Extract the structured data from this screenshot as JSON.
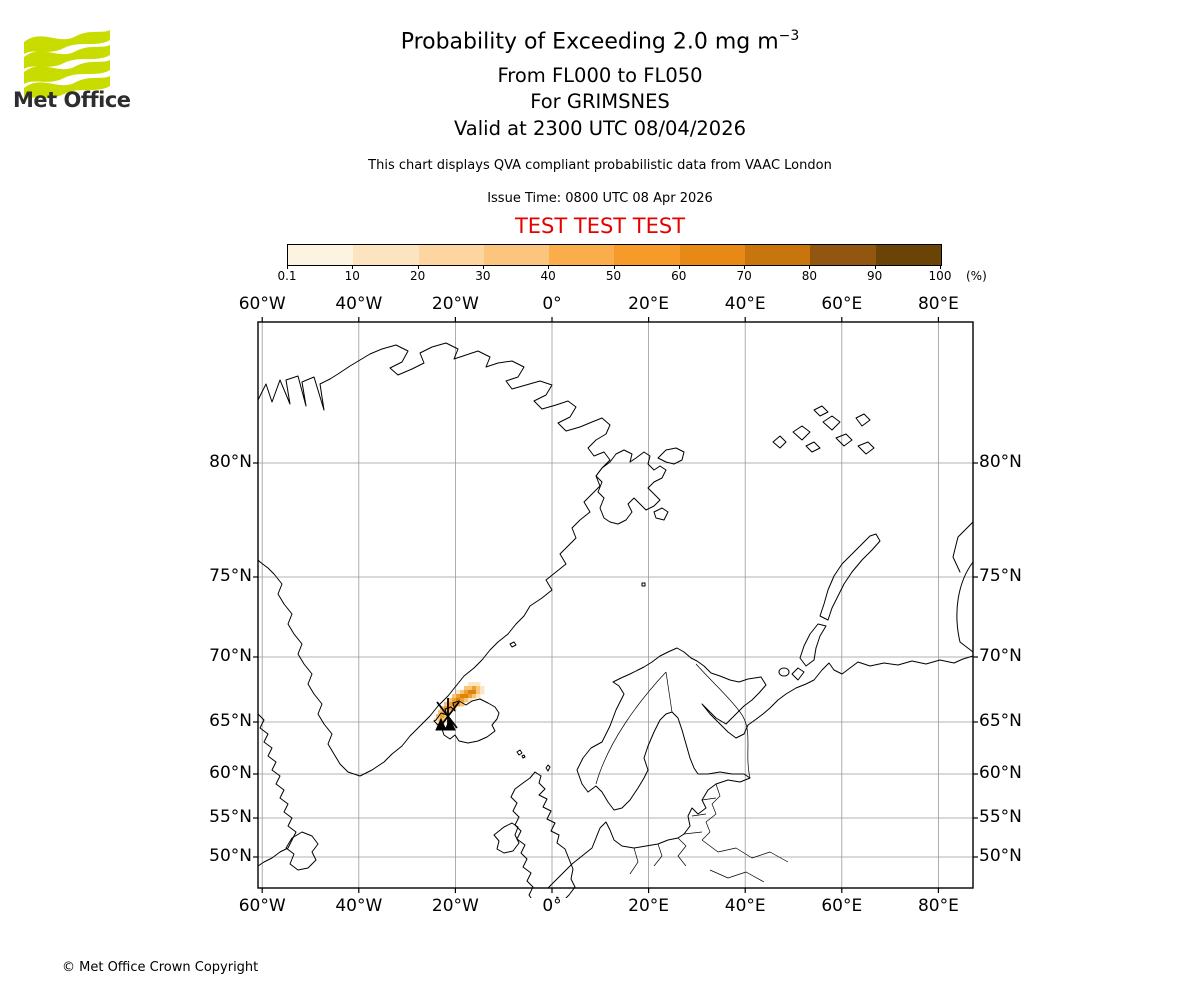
{
  "header": {
    "logo_text": "Met Office",
    "logo_green": "#c8dc00",
    "title": "Probability of Exceeding 2.0 mg m",
    "title_sup": "−3",
    "subtitle1": "From FL000 to FL050",
    "subtitle2": "For GRIMSNES",
    "subtitle3": "Valid at 2300 UTC 08/04/2026",
    "description": "This chart displays QVA compliant probabilistic data from VAAC London",
    "issue_time": "Issue Time: 0800 UTC 08 Apr 2026",
    "test_banner": "TEST TEST TEST",
    "test_color": "#e60000"
  },
  "legend": {
    "tick_labels": [
      "0.1",
      "10",
      "20",
      "30",
      "40",
      "50",
      "60",
      "70",
      "80",
      "90",
      "100"
    ],
    "unit": "(%)",
    "colors": [
      "#fdf3e1",
      "#fce4c1",
      "#fdd5a0",
      "#fcc57e",
      "#fbad4c",
      "#f69a2a",
      "#e68a15",
      "#c9750e",
      "#91560f",
      "#6a4406"
    ]
  },
  "map": {
    "lon_labels": [
      "60°W",
      "40°W",
      "20°W",
      "0°",
      "20°E",
      "40°E",
      "60°E",
      "80°E"
    ],
    "lat_labels": [
      "80°N",
      "75°N",
      "70°N",
      "65°N",
      "60°N",
      "55°N",
      "50°N"
    ],
    "grid_color": "#9a9a9a",
    "plume_colors": {
      "L": "#fbe7c4",
      "M": "#f7c577",
      "D": "#ef9f2e",
      "C": "#da830d"
    },
    "plume_cells": [
      [
        210,
        360,
        "L"
      ],
      [
        214,
        360,
        "L"
      ],
      [
        218,
        360,
        "L"
      ],
      [
        206,
        364,
        "M"
      ],
      [
        210,
        364,
        "M"
      ],
      [
        214,
        364,
        "D"
      ],
      [
        218,
        364,
        "M"
      ],
      [
        222,
        364,
        "L"
      ],
      [
        198,
        368,
        "L"
      ],
      [
        202,
        368,
        "M"
      ],
      [
        206,
        368,
        "D"
      ],
      [
        210,
        368,
        "C"
      ],
      [
        214,
        368,
        "C"
      ],
      [
        218,
        368,
        "M"
      ],
      [
        222,
        368,
        "L"
      ],
      [
        194,
        372,
        "M"
      ],
      [
        198,
        372,
        "D"
      ],
      [
        202,
        372,
        "C"
      ],
      [
        206,
        372,
        "C"
      ],
      [
        210,
        372,
        "D"
      ],
      [
        214,
        372,
        "M"
      ],
      [
        218,
        372,
        "L"
      ],
      [
        190,
        376,
        "M"
      ],
      [
        194,
        376,
        "D"
      ],
      [
        198,
        376,
        "C"
      ],
      [
        202,
        376,
        "D"
      ],
      [
        206,
        376,
        "M"
      ],
      [
        210,
        376,
        "L"
      ],
      [
        186,
        380,
        "M"
      ],
      [
        190,
        380,
        "D"
      ],
      [
        194,
        380,
        "C"
      ],
      [
        198,
        380,
        "D"
      ],
      [
        202,
        380,
        "M"
      ],
      [
        182,
        384,
        "M"
      ],
      [
        186,
        384,
        "D"
      ],
      [
        190,
        384,
        "D"
      ],
      [
        194,
        384,
        "M"
      ],
      [
        180,
        388,
        "M"
      ],
      [
        184,
        388,
        "D"
      ],
      [
        188,
        388,
        "M"
      ],
      [
        178,
        392,
        "M"
      ],
      [
        182,
        392,
        "D"
      ],
      [
        186,
        392,
        "M"
      ],
      [
        176,
        396,
        "L"
      ],
      [
        180,
        396,
        "M"
      ],
      [
        184,
        396,
        "M"
      ],
      [
        178,
        400,
        "L"
      ],
      [
        182,
        400,
        "M"
      ]
    ]
  },
  "footer": {
    "copyright": "© Met Office Crown Copyright"
  }
}
